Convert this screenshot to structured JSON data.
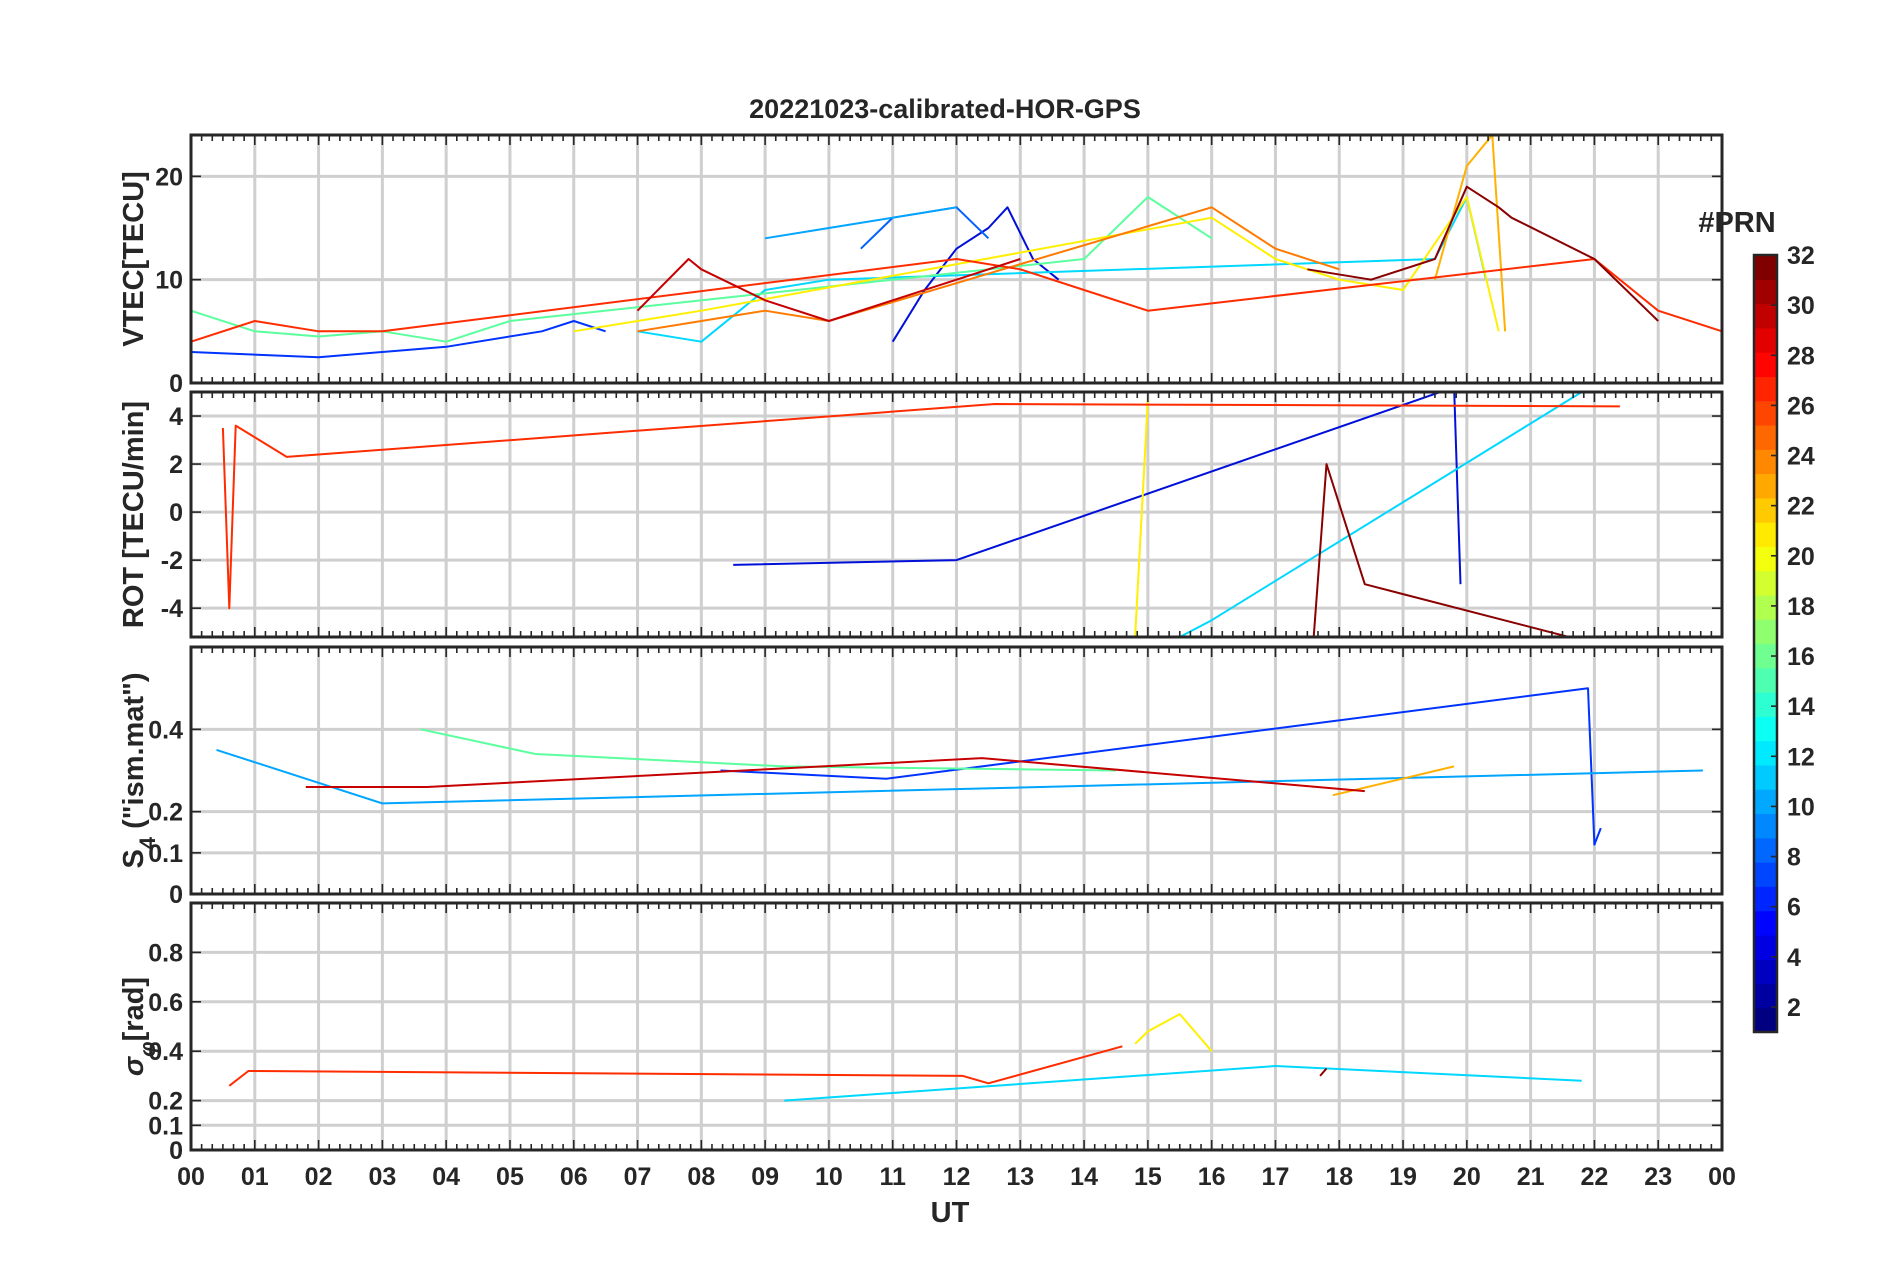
{
  "figure": {
    "title": "20221023-calibrated-HOR-GPS",
    "xlabel": "UT",
    "x_ticks": [
      "00",
      "01",
      "02",
      "03",
      "04",
      "05",
      "06",
      "07",
      "08",
      "09",
      "10",
      "11",
      "12",
      "13",
      "14",
      "15",
      "16",
      "17",
      "18",
      "19",
      "20",
      "21",
      "22",
      "23",
      "00"
    ],
    "colorbar": {
      "label": "#PRN",
      "colormap": "jet",
      "range": [
        1,
        32
      ],
      "ticks": [
        2,
        4,
        6,
        8,
        10,
        12,
        14,
        16,
        18,
        20,
        22,
        24,
        26,
        28,
        30,
        32
      ]
    }
  },
  "chart_data": [
    {
      "type": "line",
      "panel": "VTEC",
      "ylabel": "VTEC[TECU]",
      "ylim": [
        0,
        24
      ],
      "yticks": [
        0,
        10,
        20
      ],
      "xlim": [
        0,
        24
      ],
      "grid": true,
      "series": [
        {
          "prn": 2,
          "color": "#0010d9",
          "x": [
            11,
            11.5,
            12,
            12.5,
            12.8,
            13.2,
            13.6
          ],
          "y": [
            4,
            9,
            13,
            15,
            17,
            12,
            10
          ]
        },
        {
          "prn": 4,
          "color": "#0033ff",
          "x": [
            0,
            2,
            4,
            5.5,
            6,
            6.5
          ],
          "y": [
            3,
            2.5,
            3.5,
            5,
            6,
            5
          ]
        },
        {
          "prn": 6,
          "color": "#0062ff",
          "x": [
            10.5,
            11,
            12,
            12.5
          ],
          "y": [
            13,
            16,
            17,
            14
          ]
        },
        {
          "prn": 10,
          "color": "#00a5ff",
          "x": [
            9,
            10,
            11,
            12
          ],
          "y": [
            14,
            15,
            16,
            17
          ]
        },
        {
          "prn": 12,
          "color": "#00d8ff",
          "x": [
            7,
            8,
            9,
            10,
            19.5,
            20,
            20.3
          ],
          "y": [
            5,
            4,
            9,
            10,
            12,
            18,
            10
          ]
        },
        {
          "prn": 16,
          "color": "#5bff9e",
          "x": [
            0,
            1,
            2,
            3,
            4,
            5,
            14,
            15,
            16
          ],
          "y": [
            7,
            5,
            4.5,
            5,
            4,
            6,
            12,
            18,
            14
          ]
        },
        {
          "prn": 20,
          "color": "#ffef00",
          "x": [
            6,
            7,
            8,
            16,
            17,
            18,
            19,
            20,
            20.5
          ],
          "y": [
            5,
            6,
            7,
            16,
            12,
            10,
            9,
            18,
            5
          ]
        },
        {
          "prn": 22,
          "color": "#ffb000",
          "x": [
            19.5,
            20,
            20.4,
            20.6
          ],
          "y": [
            10,
            21,
            24,
            5
          ]
        },
        {
          "prn": 24,
          "color": "#ff7a00",
          "x": [
            7,
            8,
            9,
            10,
            16,
            17,
            18
          ],
          "y": [
            5,
            6,
            7,
            6,
            17,
            13,
            11
          ]
        },
        {
          "prn": 27,
          "color": "#ff2c00",
          "x": [
            0,
            1,
            2,
            3,
            12,
            13,
            14,
            15,
            22,
            23,
            24
          ],
          "y": [
            4,
            6,
            5,
            5,
            12,
            11,
            9,
            7,
            12,
            7,
            5
          ]
        },
        {
          "prn": 30,
          "color": "#c60000",
          "x": [
            7,
            7.8,
            8,
            9,
            10,
            11,
            12,
            13
          ],
          "y": [
            7,
            12,
            11,
            8,
            6,
            8,
            10,
            12
          ]
        },
        {
          "prn": 32,
          "color": "#8a0000",
          "x": [
            17.5,
            18.5,
            19.5,
            20,
            20.5,
            20.7,
            22,
            23
          ],
          "y": [
            11,
            10,
            12,
            19,
            17,
            16,
            12,
            6
          ]
        }
      ]
    },
    {
      "type": "line",
      "panel": "ROT",
      "ylabel": "ROT [TECU/min]",
      "ylim": [
        -5.2,
        5
      ],
      "yticks": [
        -4,
        -2,
        0,
        2,
        4
      ],
      "xlim": [
        0,
        24
      ],
      "grid": true,
      "series": [
        {
          "prn": 2,
          "color": "#0010d9",
          "x": [
            8.5,
            12,
            19.8,
            19.9
          ],
          "y": [
            -2.2,
            -2,
            5.2,
            -3
          ]
        },
        {
          "prn": 12,
          "color": "#00d8ff",
          "x": [
            15.5,
            16,
            21.8
          ],
          "y": [
            -5.2,
            -4.5,
            5
          ]
        },
        {
          "prn": 20,
          "color": "#ffef00",
          "x": [
            14.8,
            15
          ],
          "y": [
            -5.2,
            4.7
          ]
        },
        {
          "prn": 27,
          "color": "#ff2c00",
          "x": [
            0.5,
            0.6,
            0.7,
            1.5,
            12.6,
            22.4
          ],
          "y": [
            3.5,
            -4,
            3.6,
            2.3,
            4.5,
            4.4
          ]
        },
        {
          "prn": 32,
          "color": "#8a0000",
          "x": [
            17.6,
            17.8,
            18.4,
            21.6
          ],
          "y": [
            -5.2,
            2,
            -3,
            -5.2
          ]
        }
      ]
    },
    {
      "type": "line",
      "panel": "S4",
      "ylabel": "S4 (\"ism.mat\")",
      "ylim": [
        0,
        0.6
      ],
      "yticks": [
        0,
        0.1,
        0.2,
        0.4
      ],
      "xlim": [
        0,
        24
      ],
      "grid": true,
      "series": [
        {
          "prn": 4,
          "color": "#0033ff",
          "x": [
            8.3,
            10.9,
            21.9,
            22,
            22.1
          ],
          "y": [
            0.3,
            0.28,
            0.5,
            0.12,
            0.16
          ]
        },
        {
          "prn": 10,
          "color": "#00a5ff",
          "x": [
            0.4,
            3,
            23.7
          ],
          "y": [
            0.35,
            0.22,
            0.3
          ]
        },
        {
          "prn": 16,
          "color": "#5bff9e",
          "x": [
            3.6,
            5.4,
            9.3,
            14.5
          ],
          "y": [
            0.4,
            0.34,
            0.31,
            0.3
          ]
        },
        {
          "prn": 22,
          "color": "#ffb000",
          "x": [
            17.9,
            19.8
          ],
          "y": [
            0.24,
            0.31
          ]
        },
        {
          "prn": 30,
          "color": "#c60000",
          "x": [
            1.8,
            3.7,
            12.4,
            18.4
          ],
          "y": [
            0.26,
            0.26,
            0.33,
            0.25
          ]
        }
      ]
    },
    {
      "type": "line",
      "panel": "sigma_phi",
      "ylabel": "σφ[rad]",
      "ylim": [
        0,
        1
      ],
      "yticks": [
        0,
        0.1,
        0.2,
        0.4,
        0.6,
        0.8
      ],
      "xlim": [
        0,
        24
      ],
      "grid": true,
      "series": [
        {
          "prn": 12,
          "color": "#00d8ff",
          "x": [
            9.3,
            17,
            21.8
          ],
          "y": [
            0.2,
            0.34,
            0.28
          ]
        },
        {
          "prn": 20,
          "color": "#ffef00",
          "x": [
            14.8,
            15,
            15.5,
            16
          ],
          "y": [
            0.43,
            0.48,
            0.55,
            0.4
          ]
        },
        {
          "prn": 27,
          "color": "#ff2c00",
          "x": [
            0.6,
            0.9,
            12.1,
            12.5,
            14.6
          ],
          "y": [
            0.26,
            0.32,
            0.3,
            0.27,
            0.42
          ]
        },
        {
          "prn": 32,
          "color": "#8a0000",
          "x": [
            17.7,
            17.8
          ],
          "y": [
            0.3,
            0.33
          ]
        }
      ]
    }
  ]
}
